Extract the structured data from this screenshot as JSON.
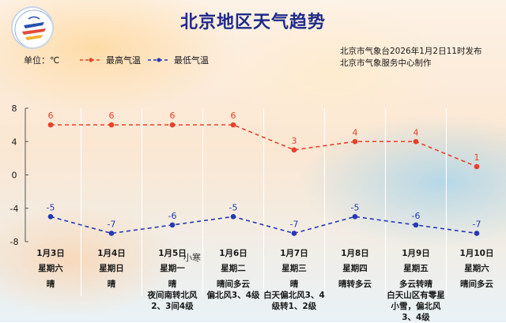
{
  "title": "北京地区天气趋势",
  "unit_label": "单位：℃",
  "publisher_line1": "北京市气象台2026年1月2日11时发布",
  "publisher_line2": "北京市气象服务中心制作",
  "handwritten_stamp": "小寒",
  "colors": {
    "high": "#e8402a",
    "low": "#2639b5",
    "title": "#1f2a8a"
  },
  "chart_data": {
    "type": "line",
    "categories": [
      "1月3日",
      "1月4日",
      "1月5日",
      "1月6日",
      "1月7日",
      "1月8日",
      "1月9日",
      "1月10日"
    ],
    "series": [
      {
        "name": "最高气温",
        "values": [
          6,
          6,
          6,
          6,
          3,
          4,
          4,
          1
        ],
        "color": "#e8402a",
        "style": "dashed"
      },
      {
        "name": "最低气温",
        "values": [
          -5,
          -7,
          -6,
          -5,
          -7,
          -5,
          -6,
          -7
        ],
        "color": "#2639b5",
        "style": "dashed"
      }
    ],
    "ylim": [
      -8,
      8
    ],
    "yticks": [
      "8",
      "4",
      "0",
      "-4",
      "-8"
    ],
    "legend_position": "top-left",
    "grid": "vertical separators"
  },
  "days": [
    {
      "date": "1月3日",
      "weekday": "星期六",
      "weather": "晴"
    },
    {
      "date": "1月4日",
      "weekday": "星期日",
      "weather": "晴"
    },
    {
      "date": "1月5日",
      "weekday": "星期一",
      "weather": "晴\n夜间南转北风2、3间4级"
    },
    {
      "date": "1月6日",
      "weekday": "星期二",
      "weather": "晴间多云\n偏北风3、4级"
    },
    {
      "date": "1月7日",
      "weekday": "星期三",
      "weather": "晴\n白天偏北风3、4级转1、2级"
    },
    {
      "date": "1月8日",
      "weekday": "星期四",
      "weather": "晴转多云"
    },
    {
      "date": "1月9日",
      "weekday": "星期五",
      "weather": "多云转晴\n白天山区有零星小雪，偏北风3、4级"
    },
    {
      "date": "1月10日",
      "weekday": "星期六",
      "weather": "晴间多云"
    }
  ]
}
